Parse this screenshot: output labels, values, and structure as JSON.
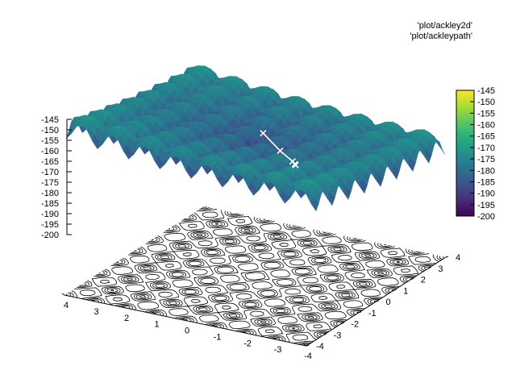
{
  "chart_data": {
    "type": "surface",
    "title": "",
    "series": [
      {
        "name": "'plot/ackley2d'",
        "kind": "surface with contour projection",
        "x_range": [
          -4,
          4
        ],
        "y_range": [
          -4,
          4
        ]
      },
      {
        "name": "'plot/ackleypath'",
        "kind": "line with x markers",
        "color": "#ffffff",
        "points": [
          [
            -0.5,
            -0.5,
            -172
          ],
          [
            -1.2,
            -0.8,
            -178
          ],
          [
            -1.7,
            -1.0,
            -181
          ],
          [
            -1.8,
            -1.05,
            -182
          ],
          [
            -1.85,
            -1.1,
            -182
          ]
        ]
      }
    ],
    "z_ticks": [
      "-145",
      "-150",
      "-155",
      "-160",
      "-165",
      "-170",
      "-175",
      "-180",
      "-185",
      "-190",
      "-195",
      "-200"
    ],
    "x_ticks": [
      "-4",
      "-3",
      "-2",
      "-1",
      "0",
      "1",
      "2",
      "3",
      "4"
    ],
    "y_ticks": [
      "-4",
      "-3",
      "-2",
      "-1",
      "0",
      "1",
      "2",
      "3",
      "4"
    ],
    "colorbar": {
      "ticks": [
        "-145",
        "-150",
        "-155",
        "-160",
        "-165",
        "-170",
        "-175",
        "-180",
        "-185",
        "-190",
        "-195",
        "-200"
      ],
      "range": [
        -200,
        -145
      ],
      "palette": "viridis",
      "colors": [
        "#440154",
        "#472c7a",
        "#3b528b",
        "#2c728e",
        "#21908d",
        "#27ad81",
        "#5cc863",
        "#aadc32",
        "#fde725"
      ]
    },
    "zlim": [
      -200,
      -145
    ],
    "grid": false,
    "legend_position": "top-right"
  }
}
